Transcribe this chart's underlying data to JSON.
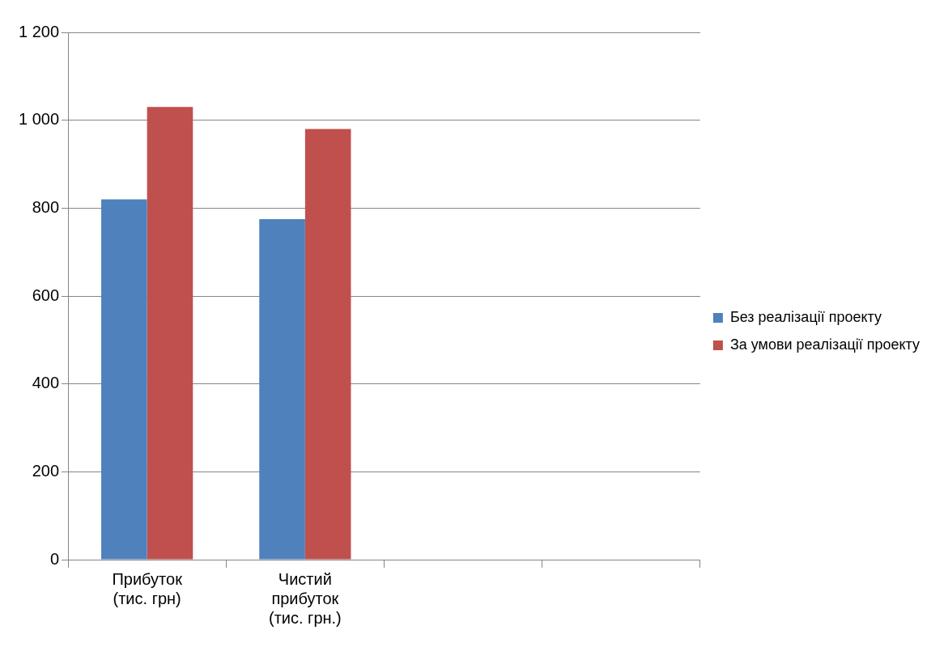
{
  "chart_data": {
    "type": "bar",
    "categories": [
      "Прибуток (тис. грн)",
      "Чистий прибуток (тис. грн.)",
      null,
      null
    ],
    "series": [
      {
        "name": "Без реалізації проекту",
        "color": "#4f81bd",
        "values": [
          820,
          775,
          null,
          null
        ]
      },
      {
        "name": "За умови реалізації проекту",
        "color": "#c0504d",
        "values": [
          1030,
          980,
          null,
          null
        ]
      }
    ],
    "ylim": [
      0,
      1200
    ],
    "yticks": [
      0,
      200,
      400,
      600,
      800,
      {
        "value": 1000,
        "label": "1 000"
      },
      {
        "value": 1200,
        "label": "1 200"
      }
    ],
    "grid": "y",
    "legend": "right"
  }
}
